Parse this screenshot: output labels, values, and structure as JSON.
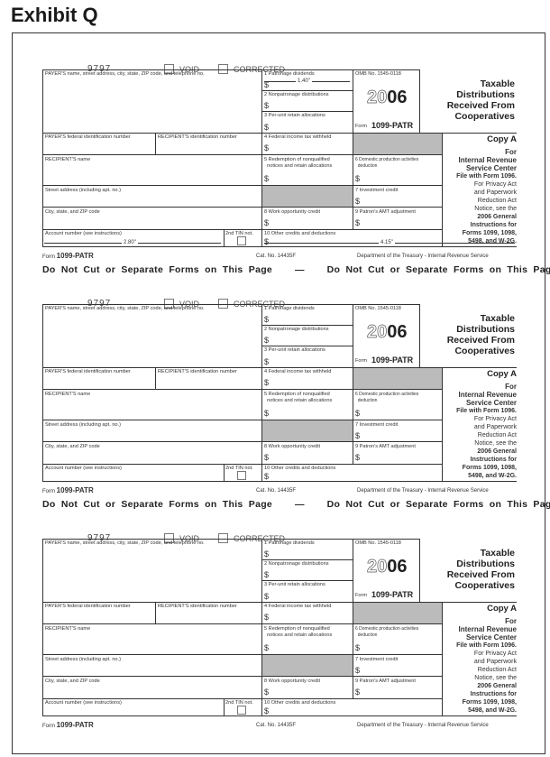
{
  "exhibit_title": "Exhibit Q",
  "form": {
    "code": "9797",
    "void_label": "VOID",
    "corrected_label": "CORRECTED",
    "payer_name_label": "PAYER'S name, street address, city, state, ZIP code, and telephone no.",
    "payer_fed_id_label": "PAYER'S federal identification number",
    "recipient_id_label": "RECIPIENT'S identification number",
    "recipient_name_label": "RECIPIENT'S name",
    "street_label": "Street address (including apt. no.)",
    "city_label": "City, state, and ZIP code",
    "account_label": "Account number (see instructions)",
    "tin_label": "2nd TIN not.",
    "box1": "1 Patronage dividends",
    "box2": "2 Nonpatronage distributions",
    "box3": "3 Per-unit retain allocations",
    "box4": "4 Federal income tax withheld",
    "box5a": "5 Redemption of nonqualified",
    "box5b": "notices and retain allocations",
    "box6a": "6 Domestic production activities",
    "box6b": "deduction",
    "box7": "7 Investment credit",
    "box8": "8 Work opportunity credit",
    "box9": "9 Patron's AMT adjustment",
    "box10": "10 Other credits and deductions",
    "dollar": "$",
    "omb": "OMB No. 1545-0118",
    "year_outline": "20",
    "year_solid": "06",
    "form_small": "Form",
    "form_name": "1099-PATR",
    "title_lines": [
      "Taxable",
      "Distributions",
      "Received From",
      "Cooperatives"
    ],
    "copy_a": "Copy A",
    "copy_lines": [
      "For",
      "Internal Revenue",
      "Service Center",
      "File with Form 1096."
    ],
    "privacy_lines": [
      "For Privacy Act",
      "and Paperwork",
      "Reduction Act",
      "Notice, see the"
    ],
    "instr_lines": [
      "2006 General",
      "Instructions for",
      "Forms 1099, 1098,",
      "5498, and W-2G."
    ],
    "cat_no": "Cat. No. 14435F",
    "dept": "Department of the Treasury - Internal Revenue Service"
  },
  "dimensions": {
    "box1_width": "1.40\"",
    "left_width": "2.80\"",
    "right_width": "4.15\""
  },
  "no_cut_text": "Do Not Cut or Separate Forms on This Page",
  "no_cut_dash": "—",
  "form_count": 3
}
